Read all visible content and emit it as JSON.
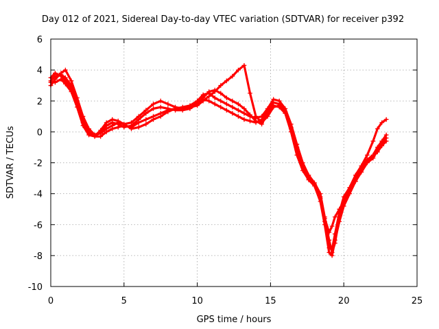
{
  "chart_data": {
    "type": "scatter",
    "title": "Day 012 of 2021, Sidereal Day-to-day VTEC variation (SDTVAR) for receiver p392",
    "xlabel": "GPS time / hours",
    "ylabel": "SDTVAR / TECUs",
    "xlim": [
      0,
      25
    ],
    "ylim": [
      -10,
      6
    ],
    "xticks": [
      0,
      5,
      10,
      15,
      20,
      25
    ],
    "yticks": [
      -10,
      -8,
      -6,
      -4,
      -2,
      0,
      2,
      4,
      6
    ],
    "xtick_labels": [
      "0",
      "5",
      "10",
      "15",
      "20",
      "25"
    ],
    "ytick_labels": [
      "-10",
      "-8",
      "-6",
      "-4",
      "-2",
      "0",
      "2",
      "4",
      "6"
    ],
    "grid": true,
    "marker": "+",
    "color": "#ff0000",
    "series": [
      {
        "name": "trace-1",
        "x": [
          0.0,
          0.3,
          0.7,
          1.0,
          1.4,
          1.8,
          2.2,
          2.6,
          3.0,
          3.4,
          3.8,
          4.2,
          4.6,
          5.0,
          5.5,
          6.0,
          6.5,
          7.0,
          7.5,
          8.0,
          8.5,
          9.0,
          9.5,
          10.0,
          10.4,
          10.8,
          11.2,
          11.6,
          12.0,
          12.4,
          12.8,
          13.2,
          13.6,
          14.0,
          14.4,
          14.8,
          15.2,
          15.6,
          16.0,
          16.4,
          16.8,
          17.2,
          17.6,
          18.0,
          18.4,
          18.7,
          19.0,
          19.2,
          19.4,
          19.7,
          20.0,
          20.4,
          20.8,
          21.2,
          21.6,
          22.0,
          22.3,
          22.6,
          22.9
        ],
        "y": [
          3.3,
          3.6,
          3.7,
          3.5,
          3.0,
          2.0,
          0.8,
          0.0,
          -0.3,
          -0.3,
          0.0,
          0.2,
          0.3,
          0.4,
          0.3,
          0.6,
          0.8,
          1.0,
          1.2,
          1.4,
          1.5,
          1.5,
          1.6,
          1.9,
          2.1,
          2.0,
          1.8,
          1.6,
          1.4,
          1.2,
          1.0,
          0.8,
          0.7,
          0.6,
          0.8,
          1.4,
          1.9,
          1.8,
          1.3,
          0.2,
          -1.2,
          -2.3,
          -3.0,
          -3.4,
          -4.2,
          -5.6,
          -6.5,
          -6.1,
          -5.5,
          -5.0,
          -4.5,
          -3.8,
          -3.0,
          -2.4,
          -1.8,
          -1.5,
          -1.0,
          -0.6,
          -0.2
        ]
      },
      {
        "name": "trace-2",
        "x": [
          0.0,
          0.3,
          0.7,
          1.0,
          1.4,
          1.8,
          2.2,
          2.6,
          3.0,
          3.4,
          3.8,
          4.2,
          4.6,
          5.0,
          5.5,
          6.0,
          6.5,
          7.0,
          7.5,
          8.0,
          8.5,
          9.0,
          9.5,
          10.0,
          10.4,
          10.8,
          11.2,
          11.6,
          12.0,
          12.4,
          12.8,
          13.2,
          13.6,
          14.0,
          14.4,
          14.8,
          15.2,
          15.6,
          16.0,
          16.4,
          16.8,
          17.2,
          17.6,
          18.0,
          18.4,
          18.7,
          19.0,
          19.2,
          19.4,
          19.7,
          20.0,
          20.4,
          20.8,
          21.2,
          21.6,
          22.0,
          22.3,
          22.6,
          22.9
        ],
        "y": [
          3.0,
          3.4,
          3.8,
          4.0,
          3.3,
          2.2,
          1.0,
          0.2,
          -0.2,
          -0.1,
          0.2,
          0.4,
          0.6,
          0.5,
          0.2,
          0.3,
          0.5,
          0.8,
          1.0,
          1.3,
          1.5,
          1.6,
          1.7,
          2.0,
          2.4,
          2.5,
          2.2,
          2.0,
          1.8,
          1.6,
          1.4,
          1.2,
          1.0,
          0.9,
          1.0,
          1.5,
          2.1,
          2.0,
          1.5,
          0.5,
          -0.8,
          -2.0,
          -2.8,
          -3.3,
          -4.0,
          -5.5,
          -7.0,
          -7.8,
          -7.2,
          -5.5,
          -4.5,
          -3.8,
          -3.2,
          -2.6,
          -2.0,
          -1.7,
          -1.2,
          -0.8,
          -0.4
        ]
      },
      {
        "name": "trace-3",
        "x": [
          0.0,
          0.3,
          0.7,
          1.0,
          1.4,
          1.8,
          2.2,
          2.6,
          3.0,
          3.4,
          3.8,
          4.2,
          4.6,
          5.0,
          5.5,
          6.0,
          6.5,
          7.0,
          7.5,
          8.0,
          8.5,
          9.0,
          9.5,
          10.0,
          10.4,
          10.8,
          11.2,
          11.6,
          12.0,
          12.4,
          12.8,
          13.2,
          13.6,
          14.0,
          14.4,
          14.8,
          15.2,
          15.6,
          16.0,
          16.4,
          16.8,
          17.2,
          17.6,
          18.0,
          18.4,
          18.7,
          19.0,
          19.2,
          19.4,
          19.7,
          20.0,
          20.4,
          20.8,
          21.2,
          21.6,
          22.0,
          22.3,
          22.6,
          22.9
        ],
        "y": [
          3.5,
          3.8,
          3.6,
          3.3,
          2.8,
          1.8,
          0.6,
          -0.1,
          -0.2,
          0.0,
          0.4,
          0.6,
          0.5,
          0.3,
          0.4,
          0.8,
          1.2,
          1.5,
          1.6,
          1.5,
          1.4,
          1.4,
          1.5,
          1.8,
          2.2,
          2.6,
          2.7,
          2.5,
          2.2,
          2.0,
          1.8,
          1.5,
          1.1,
          0.7,
          0.5,
          1.2,
          1.7,
          1.6,
          1.2,
          0.0,
          -1.5,
          -2.5,
          -3.1,
          -3.5,
          -4.5,
          -6.0,
          -7.8,
          -8.0,
          -7.0,
          -5.8,
          -4.8,
          -4.0,
          -3.2,
          -2.5,
          -1.9,
          -1.6,
          -1.3,
          -0.9,
          -0.6
        ]
      },
      {
        "name": "trace-4",
        "x": [
          0.0,
          0.3,
          0.7,
          1.0,
          1.4,
          1.8,
          2.2,
          2.6,
          3.0,
          3.4,
          3.8,
          4.2,
          4.6,
          5.0,
          5.5,
          6.0,
          6.5,
          7.0,
          7.5,
          8.0,
          8.5,
          9.0,
          9.5,
          10.0,
          10.4,
          10.8,
          11.2,
          11.6,
          12.0,
          12.4,
          12.8,
          13.2,
          13.6,
          14.0,
          14.4,
          14.8,
          15.2,
          15.6,
          16.0,
          16.4,
          16.8,
          17.2,
          17.6,
          18.0,
          18.4,
          18.7,
          19.0,
          19.2,
          19.4,
          19.7,
          20.0,
          20.4,
          20.8,
          21.2,
          21.6,
          22.0,
          22.3,
          22.6,
          22.9
        ],
        "y": [
          3.2,
          3.2,
          3.4,
          3.1,
          2.6,
          1.6,
          0.4,
          -0.2,
          -0.3,
          0.1,
          0.6,
          0.8,
          0.7,
          0.5,
          0.6,
          1.0,
          1.4,
          1.8,
          2.0,
          1.8,
          1.6,
          1.5,
          1.6,
          1.7,
          2.0,
          2.3,
          2.6,
          3.0,
          3.3,
          3.6,
          4.0,
          4.3,
          2.5,
          1.0,
          0.6,
          1.0,
          1.6,
          1.7,
          1.3,
          0.3,
          -1.0,
          -2.2,
          -2.9,
          -3.4,
          -4.3,
          -5.8,
          -7.5,
          -7.6,
          -6.6,
          -5.2,
          -4.2,
          -3.6,
          -2.8,
          -2.2,
          -1.5,
          -0.6,
          0.2,
          0.6,
          0.8
        ]
      }
    ]
  }
}
